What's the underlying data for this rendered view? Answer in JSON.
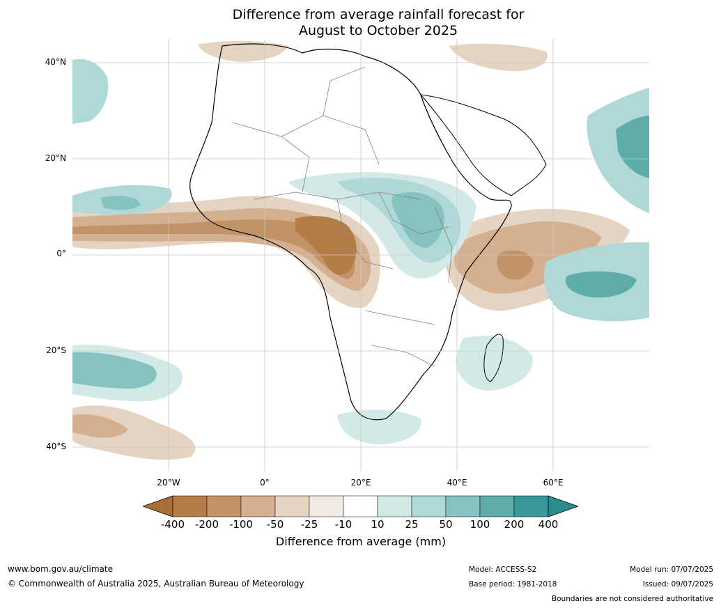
{
  "title": {
    "line1": "Difference from average rainfall forecast for",
    "line2": "August to October 2025"
  },
  "map": {
    "lat_labels": [
      "40°N",
      "20°N",
      "0°",
      "20°S",
      "40°S"
    ],
    "lon_labels": [
      "20°W",
      "0°",
      "20°E",
      "40°E",
      "60°E"
    ],
    "colors": {
      "ocean_land_neutral": "#ffffff",
      "border": "#808080",
      "coast": "#000000",
      "grid": "#c8c8c8"
    }
  },
  "colorbar": {
    "label": "Difference from average (mm)",
    "ticks": [
      "-400",
      "-200",
      "-100",
      "-50",
      "-25",
      "-10",
      "10",
      "25",
      "50",
      "100",
      "200",
      "400"
    ],
    "colors": [
      "#a86f3a",
      "#b47d48",
      "#c29366",
      "#d4b091",
      "#e6d4c2",
      "#f2ebe3",
      "#ffffff",
      "#d3e9e7",
      "#aed9d6",
      "#86c3c0",
      "#5eadab",
      "#39999a",
      "#2a8d8c"
    ]
  },
  "footer": {
    "website": "www.bom.gov.au/climate",
    "copyright": "© Commonwealth of Australia 2025, Australian Bureau of Meteorology",
    "model": "Model: ACCESS-S2",
    "base_period": "Base period: 1981-2018",
    "model_run": "Model run: 07/07/2025",
    "issued": "Issued: 09/07/2025",
    "disclaimer": "Boundaries are not considered authoritative"
  }
}
